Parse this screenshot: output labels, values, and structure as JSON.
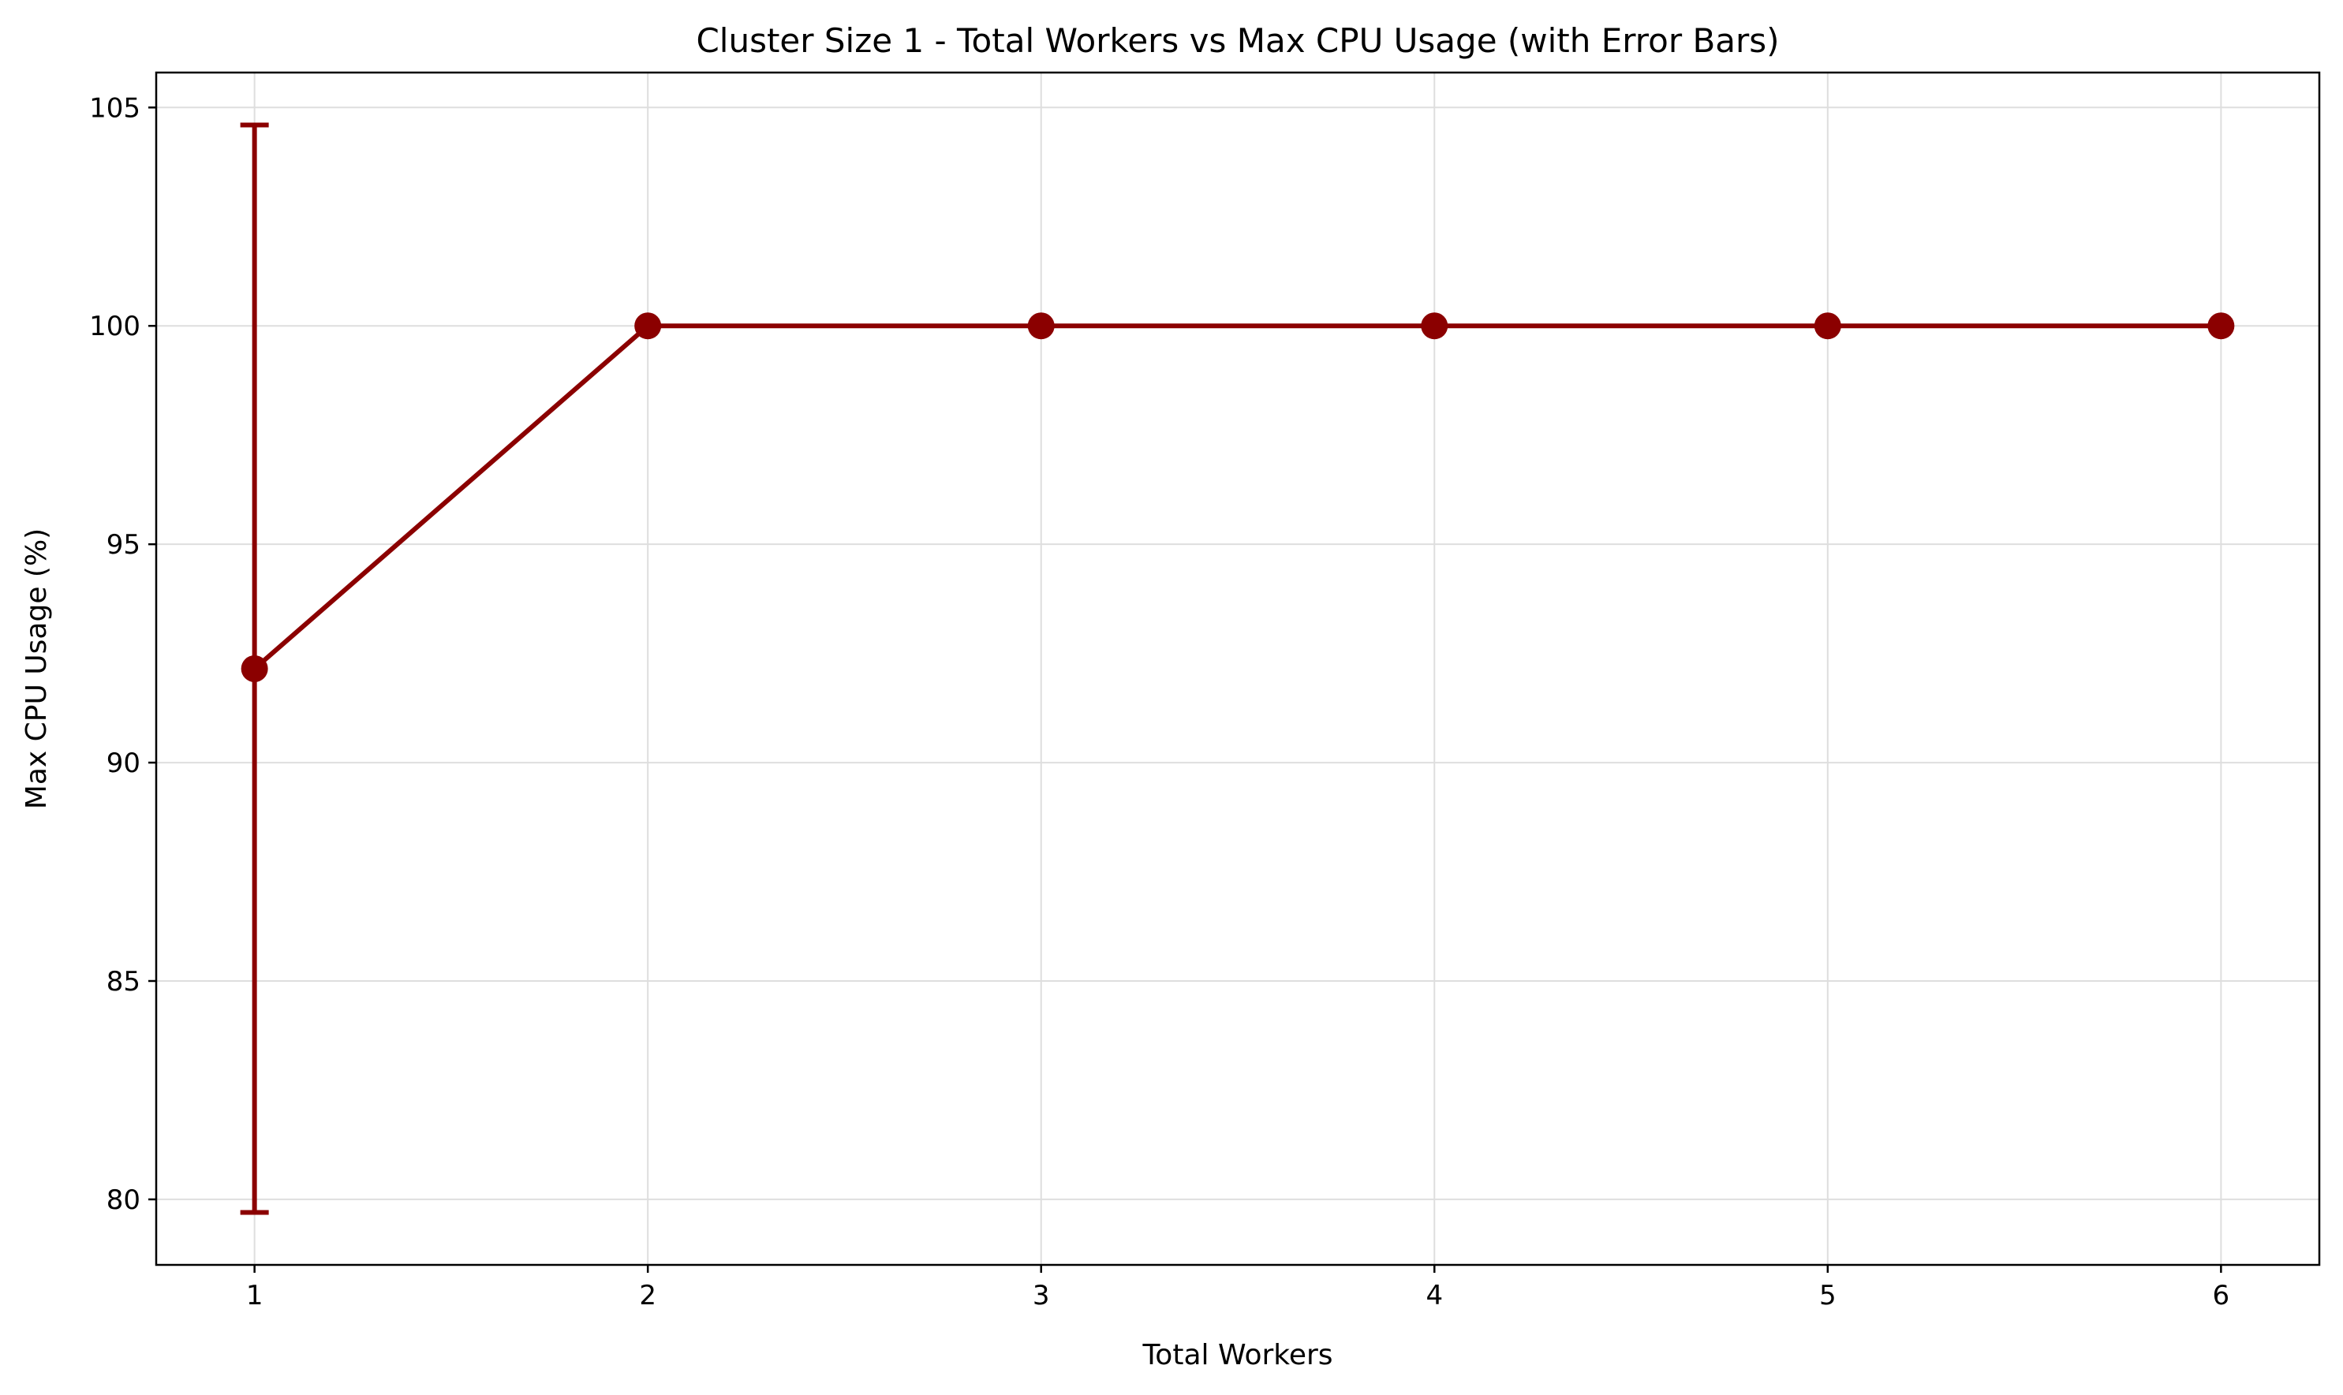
{
  "chart_data": {
    "type": "line",
    "title": "Cluster Size 1 - Total Workers vs Max CPU Usage (with Error Bars)",
    "xlabel": "Total Workers",
    "ylabel": "Max CPU Usage (%)",
    "xlim": [
      0.75,
      6.25
    ],
    "ylim": [
      78.5,
      105.8
    ],
    "xticks": [
      1,
      2,
      3,
      4,
      5,
      6
    ],
    "yticks": [
      80,
      85,
      90,
      95,
      100,
      105
    ],
    "grid": true,
    "series": [
      {
        "x": [
          1,
          2,
          3,
          4,
          5,
          6
        ],
        "y": [
          92.15,
          100,
          100,
          100,
          100,
          100
        ],
        "yerr": [
          12.45,
          0,
          0,
          0,
          0,
          0
        ],
        "color": "#8b0000",
        "marker": "circle"
      }
    ]
  }
}
